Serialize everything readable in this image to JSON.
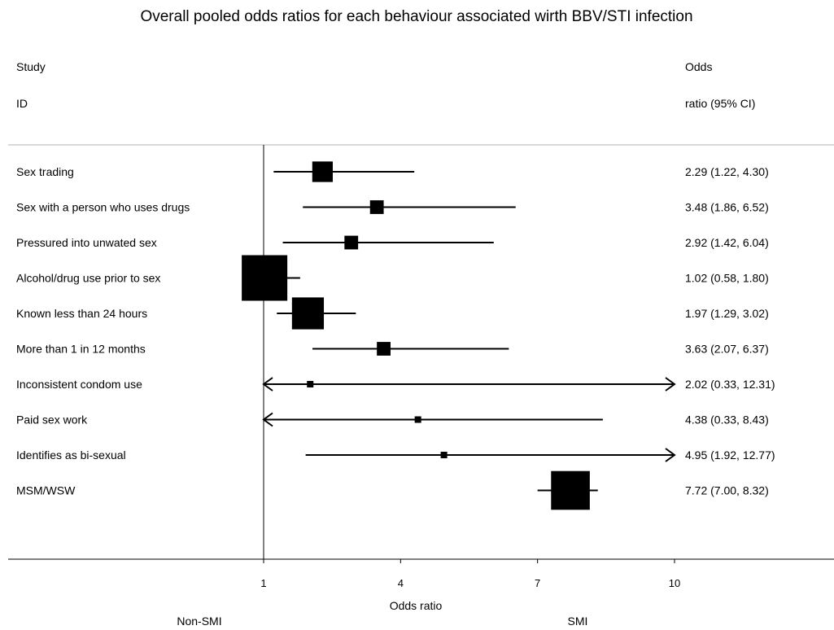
{
  "chart_data": {
    "type": "forest",
    "title": "Overall pooled odds ratios for each behaviour associated wirth BBV/STI infection",
    "header_left": [
      "Study",
      "ID"
    ],
    "header_right": [
      "Odds",
      "ratio (95% CI)"
    ],
    "xlabel": "Odds ratio",
    "left_side_label": "Non-SMI",
    "right_side_label": "SMI",
    "x_ticks": [
      1,
      4,
      7,
      10
    ],
    "xlim": [
      1,
      10
    ],
    "reference_line": 1,
    "rows": [
      {
        "label": "Sex trading",
        "or": 2.29,
        "lo": 1.22,
        "hi": 4.3,
        "ci_text": "2.29 (1.22, 4.30)",
        "weight": 0.45
      },
      {
        "label": "Sex with a person who uses drugs",
        "or": 3.48,
        "lo": 1.86,
        "hi": 6.52,
        "ci_text": "3.48 (1.86, 6.52)",
        "weight": 0.3
      },
      {
        "label": "Pressured into unwated sex",
        "or": 2.92,
        "lo": 1.42,
        "hi": 6.04,
        "ci_text": "2.92 (1.42, 6.04)",
        "weight": 0.3
      },
      {
        "label": "Alcohol/drug use prior to sex",
        "or": 1.02,
        "lo": 0.58,
        "hi": 1.8,
        "ci_text": "1.02 (0.58, 1.80)",
        "weight": 1.0
      },
      {
        "label": "Known less than 24 hours",
        "or": 1.97,
        "lo": 1.29,
        "hi": 3.02,
        "ci_text": "1.97 (1.29, 3.02)",
        "weight": 0.7
      },
      {
        "label": "More than 1 in 12 months",
        "or": 3.63,
        "lo": 2.07,
        "hi": 6.37,
        "ci_text": "3.63 (2.07, 6.37)",
        "weight": 0.3
      },
      {
        "label": "Inconsistent condom use",
        "or": 2.02,
        "lo": 0.33,
        "hi": 12.31,
        "ci_text": "2.02 (0.33, 12.31)",
        "weight": 0.09
      },
      {
        "label": "Paid sex work",
        "or": 4.38,
        "lo": 0.33,
        "hi": 8.43,
        "ci_text": "4.38 (0.33, 8.43)",
        "weight": 0.09
      },
      {
        "label": "Identifies as bi-sexual",
        "or": 4.95,
        "lo": 1.92,
        "hi": 12.77,
        "ci_text": "4.95 (1.92, 12.77)",
        "weight": 0.09
      },
      {
        "label": "MSM/WSW",
        "or": 7.72,
        "lo": 7.0,
        "hi": 8.32,
        "ci_text": "7.72 (7.00, 8.32)",
        "weight": 0.85
      }
    ]
  }
}
